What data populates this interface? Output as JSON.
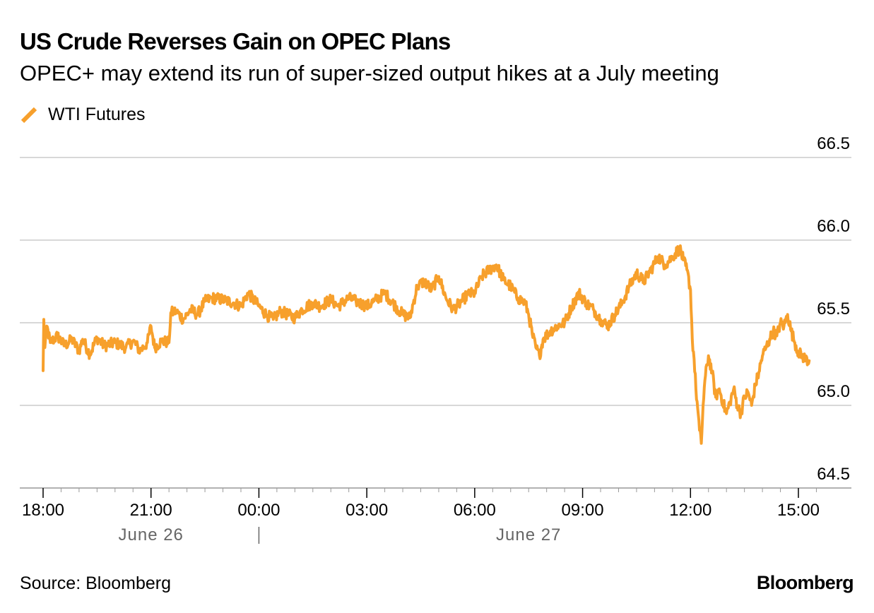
{
  "header": {
    "title": "US Crude Reverses Gain on OPEC Plans",
    "subtitle": "OPEC+ may extend its run of super-sized output hikes at a July meeting"
  },
  "footer": {
    "source": "Source: Bloomberg",
    "brand": "Bloomberg"
  },
  "colors": {
    "series": "#f7a02c",
    "grid": "#cccccc",
    "axis": "#999999",
    "date_label": "#666666"
  },
  "chart_data": {
    "type": "line",
    "title": "US Crude Reverses Gain on OPEC Plans",
    "subtitle": "OPEC+ may extend its run of super-sized output hikes at a July meeting",
    "xlabel": "",
    "ylabel": "",
    "ylim": [
      64.5,
      66.5
    ],
    "y_ticks": [
      "66.5",
      "66.0",
      "65.5",
      "65.0",
      "64.5"
    ],
    "y_tick_values": [
      66.5,
      66.0,
      65.5,
      65.0,
      64.5
    ],
    "x_unit": "hours since 18:00 June 26",
    "xlim": [
      0,
      21.8
    ],
    "x_ticks": [
      {
        "t": 0,
        "label": "18:00"
      },
      {
        "t": 3,
        "label": "21:00"
      },
      {
        "t": 6,
        "label": "00:00"
      },
      {
        "t": 9,
        "label": "03:00"
      },
      {
        "t": 12,
        "label": "06:00"
      },
      {
        "t": 15,
        "label": "09:00"
      },
      {
        "t": 18,
        "label": "12:00"
      },
      {
        "t": 21,
        "label": "15:00"
      }
    ],
    "date_labels": [
      {
        "t": 3,
        "label": "June 26"
      },
      {
        "t": 13.5,
        "label": "June 27"
      }
    ],
    "date_separator_t": 6,
    "legend_position": "top-left",
    "series": [
      {
        "name": "WTI Futures",
        "points": [
          [
            0.0,
            65.21
          ],
          [
            0.02,
            65.52
          ],
          [
            0.05,
            65.35
          ],
          [
            0.1,
            65.48
          ],
          [
            0.2,
            65.38
          ],
          [
            0.4,
            65.42
          ],
          [
            0.6,
            65.36
          ],
          [
            0.8,
            65.4
          ],
          [
            1.0,
            65.33
          ],
          [
            1.1,
            65.4
          ],
          [
            1.3,
            65.31
          ],
          [
            1.5,
            65.41
          ],
          [
            1.7,
            65.36
          ],
          [
            2.0,
            65.38
          ],
          [
            2.3,
            65.35
          ],
          [
            2.5,
            65.39
          ],
          [
            2.7,
            65.33
          ],
          [
            2.9,
            65.38
          ],
          [
            3.0,
            65.48
          ],
          [
            3.1,
            65.35
          ],
          [
            3.3,
            65.39
          ],
          [
            3.5,
            65.38
          ],
          [
            3.55,
            65.56
          ],
          [
            3.7,
            65.57
          ],
          [
            3.9,
            65.52
          ],
          [
            4.1,
            65.58
          ],
          [
            4.3,
            65.55
          ],
          [
            4.5,
            65.63
          ],
          [
            4.7,
            65.65
          ],
          [
            5.0,
            65.64
          ],
          [
            5.3,
            65.62
          ],
          [
            5.5,
            65.6
          ],
          [
            5.7,
            65.68
          ],
          [
            6.0,
            65.6
          ],
          [
            6.2,
            65.55
          ],
          [
            6.4,
            65.52
          ],
          [
            6.6,
            65.57
          ],
          [
            6.8,
            65.55
          ],
          [
            7.0,
            65.53
          ],
          [
            7.2,
            65.58
          ],
          [
            7.5,
            65.62
          ],
          [
            7.7,
            65.6
          ],
          [
            8.0,
            65.64
          ],
          [
            8.2,
            65.6
          ],
          [
            8.5,
            65.65
          ],
          [
            8.7,
            65.63
          ],
          [
            9.0,
            65.6
          ],
          [
            9.2,
            65.63
          ],
          [
            9.5,
            65.68
          ],
          [
            9.8,
            65.6
          ],
          [
            10.0,
            65.55
          ],
          [
            10.2,
            65.53
          ],
          [
            10.4,
            65.72
          ],
          [
            10.6,
            65.75
          ],
          [
            10.8,
            65.7
          ],
          [
            11.0,
            65.78
          ],
          [
            11.2,
            65.65
          ],
          [
            11.4,
            65.58
          ],
          [
            11.6,
            65.62
          ],
          [
            11.8,
            65.67
          ],
          [
            12.0,
            65.68
          ],
          [
            12.2,
            65.78
          ],
          [
            12.4,
            65.82
          ],
          [
            12.6,
            65.85
          ],
          [
            12.8,
            65.76
          ],
          [
            13.0,
            65.72
          ],
          [
            13.2,
            65.65
          ],
          [
            13.4,
            65.62
          ],
          [
            13.5,
            65.55
          ],
          [
            13.6,
            65.43
          ],
          [
            13.7,
            65.35
          ],
          [
            13.8,
            65.3
          ],
          [
            13.9,
            65.4
          ],
          [
            14.1,
            65.45
          ],
          [
            14.3,
            65.48
          ],
          [
            14.5,
            65.5
          ],
          [
            14.7,
            65.6
          ],
          [
            14.9,
            65.68
          ],
          [
            15.1,
            65.62
          ],
          [
            15.3,
            65.58
          ],
          [
            15.5,
            65.52
          ],
          [
            15.7,
            65.48
          ],
          [
            15.9,
            65.55
          ],
          [
            16.1,
            65.62
          ],
          [
            16.3,
            65.72
          ],
          [
            16.5,
            65.8
          ],
          [
            16.7,
            65.75
          ],
          [
            16.9,
            65.82
          ],
          [
            17.1,
            65.9
          ],
          [
            17.3,
            65.85
          ],
          [
            17.5,
            65.9
          ],
          [
            17.7,
            65.95
          ],
          [
            17.8,
            65.88
          ],
          [
            17.9,
            65.82
          ],
          [
            18.0,
            65.7
          ],
          [
            18.05,
            65.4
          ],
          [
            18.1,
            65.28
          ],
          [
            18.15,
            65.1
          ],
          [
            18.2,
            64.98
          ],
          [
            18.25,
            64.85
          ],
          [
            18.3,
            64.77
          ],
          [
            18.35,
            65.0
          ],
          [
            18.4,
            65.15
          ],
          [
            18.5,
            65.3
          ],
          [
            18.6,
            65.2
          ],
          [
            18.7,
            65.05
          ],
          [
            18.8,
            65.1
          ],
          [
            18.9,
            65.02
          ],
          [
            19.0,
            64.95
          ],
          [
            19.1,
            65.02
          ],
          [
            19.2,
            65.1
          ],
          [
            19.3,
            65.0
          ],
          [
            19.4,
            64.95
          ],
          [
            19.5,
            65.05
          ],
          [
            19.6,
            65.08
          ],
          [
            19.7,
            65.0
          ],
          [
            19.8,
            65.12
          ],
          [
            19.9,
            65.2
          ],
          [
            20.0,
            65.3
          ],
          [
            20.1,
            65.35
          ],
          [
            20.2,
            65.4
          ],
          [
            20.3,
            65.45
          ],
          [
            20.4,
            65.42
          ],
          [
            20.5,
            65.5
          ],
          [
            20.6,
            65.48
          ],
          [
            20.7,
            65.55
          ],
          [
            20.8,
            65.45
          ],
          [
            20.9,
            65.38
          ],
          [
            21.0,
            65.32
          ],
          [
            21.1,
            65.3
          ],
          [
            21.2,
            65.28
          ],
          [
            21.3,
            65.27
          ]
        ]
      }
    ]
  }
}
